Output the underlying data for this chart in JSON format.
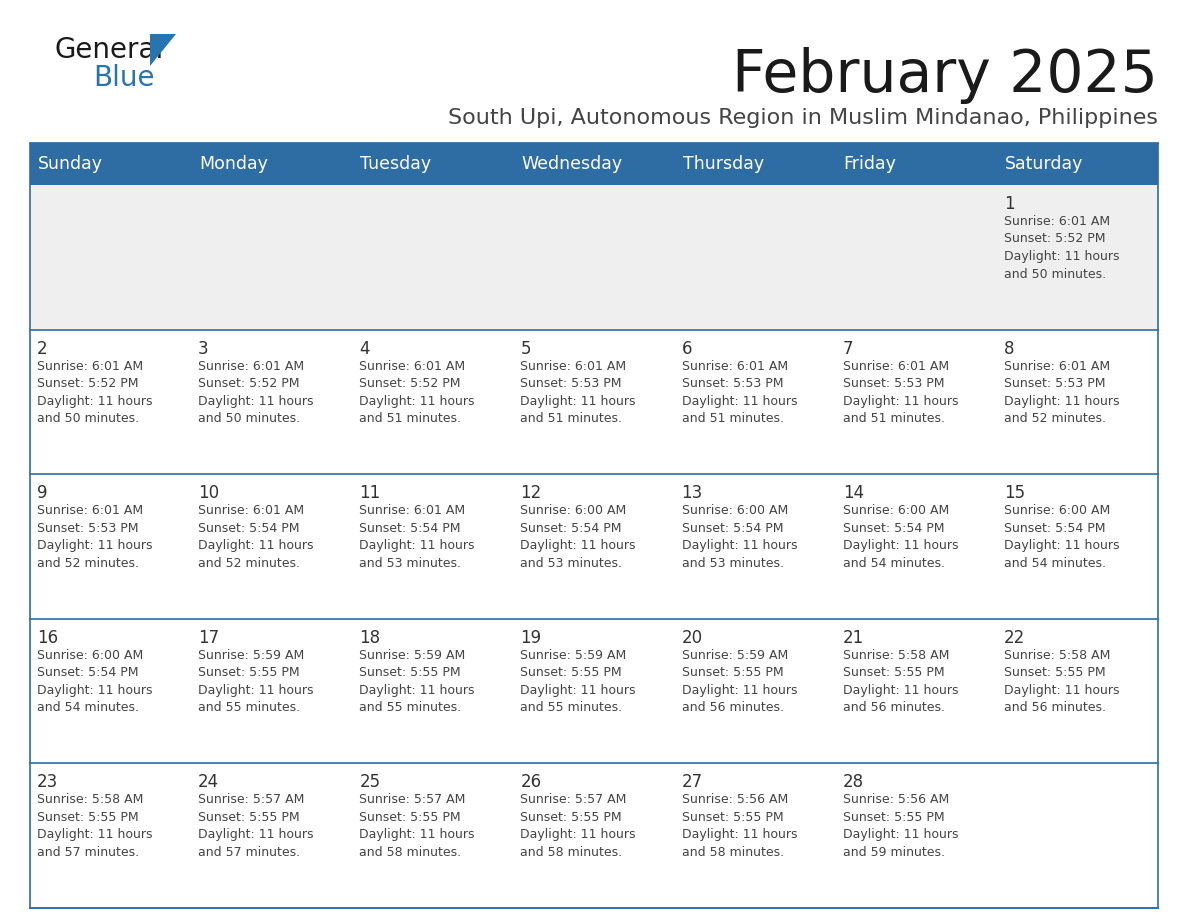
{
  "title": "February 2025",
  "subtitle": "South Upi, Autonomous Region in Muslim Mindanao, Philippines",
  "header_bg": "#2E6DA4",
  "header_text_color": "#FFFFFF",
  "cell_bg_row0": "#EFEFEF",
  "cell_bg_normal": "#FFFFFF",
  "text_color": "#444444",
  "day_number_color": "#333333",
  "line_color": "#2E6DA4",
  "days_of_week": [
    "Sunday",
    "Monday",
    "Tuesday",
    "Wednesday",
    "Thursday",
    "Friday",
    "Saturday"
  ],
  "weeks": [
    [
      {
        "day": "",
        "info": ""
      },
      {
        "day": "",
        "info": ""
      },
      {
        "day": "",
        "info": ""
      },
      {
        "day": "",
        "info": ""
      },
      {
        "day": "",
        "info": ""
      },
      {
        "day": "",
        "info": ""
      },
      {
        "day": "1",
        "info": "Sunrise: 6:01 AM\nSunset: 5:52 PM\nDaylight: 11 hours\nand 50 minutes."
      }
    ],
    [
      {
        "day": "2",
        "info": "Sunrise: 6:01 AM\nSunset: 5:52 PM\nDaylight: 11 hours\nand 50 minutes."
      },
      {
        "day": "3",
        "info": "Sunrise: 6:01 AM\nSunset: 5:52 PM\nDaylight: 11 hours\nand 50 minutes."
      },
      {
        "day": "4",
        "info": "Sunrise: 6:01 AM\nSunset: 5:52 PM\nDaylight: 11 hours\nand 51 minutes."
      },
      {
        "day": "5",
        "info": "Sunrise: 6:01 AM\nSunset: 5:53 PM\nDaylight: 11 hours\nand 51 minutes."
      },
      {
        "day": "6",
        "info": "Sunrise: 6:01 AM\nSunset: 5:53 PM\nDaylight: 11 hours\nand 51 minutes."
      },
      {
        "day": "7",
        "info": "Sunrise: 6:01 AM\nSunset: 5:53 PM\nDaylight: 11 hours\nand 51 minutes."
      },
      {
        "day": "8",
        "info": "Sunrise: 6:01 AM\nSunset: 5:53 PM\nDaylight: 11 hours\nand 52 minutes."
      }
    ],
    [
      {
        "day": "9",
        "info": "Sunrise: 6:01 AM\nSunset: 5:53 PM\nDaylight: 11 hours\nand 52 minutes."
      },
      {
        "day": "10",
        "info": "Sunrise: 6:01 AM\nSunset: 5:54 PM\nDaylight: 11 hours\nand 52 minutes."
      },
      {
        "day": "11",
        "info": "Sunrise: 6:01 AM\nSunset: 5:54 PM\nDaylight: 11 hours\nand 53 minutes."
      },
      {
        "day": "12",
        "info": "Sunrise: 6:00 AM\nSunset: 5:54 PM\nDaylight: 11 hours\nand 53 minutes."
      },
      {
        "day": "13",
        "info": "Sunrise: 6:00 AM\nSunset: 5:54 PM\nDaylight: 11 hours\nand 53 minutes."
      },
      {
        "day": "14",
        "info": "Sunrise: 6:00 AM\nSunset: 5:54 PM\nDaylight: 11 hours\nand 54 minutes."
      },
      {
        "day": "15",
        "info": "Sunrise: 6:00 AM\nSunset: 5:54 PM\nDaylight: 11 hours\nand 54 minutes."
      }
    ],
    [
      {
        "day": "16",
        "info": "Sunrise: 6:00 AM\nSunset: 5:54 PM\nDaylight: 11 hours\nand 54 minutes."
      },
      {
        "day": "17",
        "info": "Sunrise: 5:59 AM\nSunset: 5:55 PM\nDaylight: 11 hours\nand 55 minutes."
      },
      {
        "day": "18",
        "info": "Sunrise: 5:59 AM\nSunset: 5:55 PM\nDaylight: 11 hours\nand 55 minutes."
      },
      {
        "day": "19",
        "info": "Sunrise: 5:59 AM\nSunset: 5:55 PM\nDaylight: 11 hours\nand 55 minutes."
      },
      {
        "day": "20",
        "info": "Sunrise: 5:59 AM\nSunset: 5:55 PM\nDaylight: 11 hours\nand 56 minutes."
      },
      {
        "day": "21",
        "info": "Sunrise: 5:58 AM\nSunset: 5:55 PM\nDaylight: 11 hours\nand 56 minutes."
      },
      {
        "day": "22",
        "info": "Sunrise: 5:58 AM\nSunset: 5:55 PM\nDaylight: 11 hours\nand 56 minutes."
      }
    ],
    [
      {
        "day": "23",
        "info": "Sunrise: 5:58 AM\nSunset: 5:55 PM\nDaylight: 11 hours\nand 57 minutes."
      },
      {
        "day": "24",
        "info": "Sunrise: 5:57 AM\nSunset: 5:55 PM\nDaylight: 11 hours\nand 57 minutes."
      },
      {
        "day": "25",
        "info": "Sunrise: 5:57 AM\nSunset: 5:55 PM\nDaylight: 11 hours\nand 58 minutes."
      },
      {
        "day": "26",
        "info": "Sunrise: 5:57 AM\nSunset: 5:55 PM\nDaylight: 11 hours\nand 58 minutes."
      },
      {
        "day": "27",
        "info": "Sunrise: 5:56 AM\nSunset: 5:55 PM\nDaylight: 11 hours\nand 58 minutes."
      },
      {
        "day": "28",
        "info": "Sunrise: 5:56 AM\nSunset: 5:55 PM\nDaylight: 11 hours\nand 59 minutes."
      },
      {
        "day": "",
        "info": ""
      }
    ]
  ],
  "logo_text_general": "General",
  "logo_text_blue": "Blue",
  "logo_color_general": "#1a1a1a",
  "logo_color_blue": "#2775b0",
  "logo_triangle_color": "#2775b0"
}
